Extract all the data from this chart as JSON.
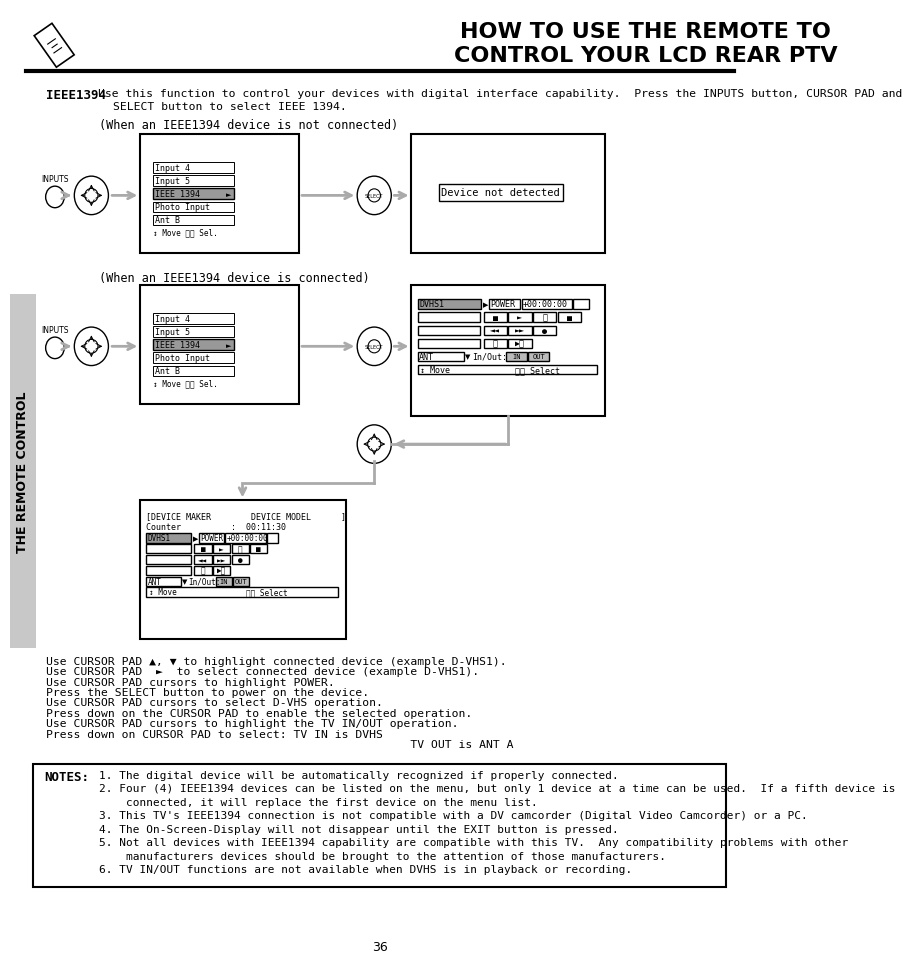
{
  "title_line1": "HOW TO USE THE REMOTE TO",
  "title_line2": "CONTROL YOUR LCD REAR PTV",
  "bg_color": "#ffffff",
  "text_color": "#000000",
  "sidebar_text": "THE REMOTE CONTROL",
  "sidebar_bg": "#c8c8c8",
  "page_number": "36",
  "ieee_bold": "IEEE1394",
  "not_connected_label": "(When an IEEE1394 device is not connected)",
  "connected_label": "(When an IEEE1394 device is connected)",
  "menu_items": [
    "Input 4",
    "Input 5",
    "IEEE 1394",
    "Photo Input",
    "Ant B"
  ],
  "menu_footer": "↕ Move ⒶⓉ Sel.",
  "device_not_detected": "Device not detected",
  "cursor_text_lines": [
    "Use CURSOR PAD ▲, ▼ to highlight connected device (example D-VHS1).",
    "Use CURSOR PAD  ►  to select connected device (example D-VHS1).",
    "Use CURSOR PAD cursors to highlight POWER.",
    "Press the SELECT button to power on the device.",
    "Use CURSOR PAD cursors to select D-VHS operation.",
    "Press down on the CURSOR PAD to enable the selected operation.",
    "Use CURSOR PAD cursors to highlight the TV IN/OUT operation.",
    "Press down on CURSOR PAD to select: TV IN is DVHS",
    "                                                     TV OUT is ANT A"
  ],
  "notes_header": "NOTES:",
  "notes_lines": [
    "1. The digital device will be automatically recognized if properly connected.",
    "2. Four (4) IEEE1394 devices can be listed on the menu, but only 1 device at a time can be used.  If a fifth device is",
    "    connected, it will replace the first device on the menu list.",
    "3. This TV's IEEE1394 connection is not compatible with a DV camcorder (Digital Video Camcorder) or a PC.",
    "4. The On-Screen-Display will not disappear until the EXIT button is pressed.",
    "5. Not all devices with IEEE1394 capability are compatible with this TV.  Any compatibility problems with other",
    "    manufacturers devices should be brought to the attention of those manufacturers.",
    "6. TV IN/OUT functions are not available when DVHS is in playback or recording."
  ]
}
